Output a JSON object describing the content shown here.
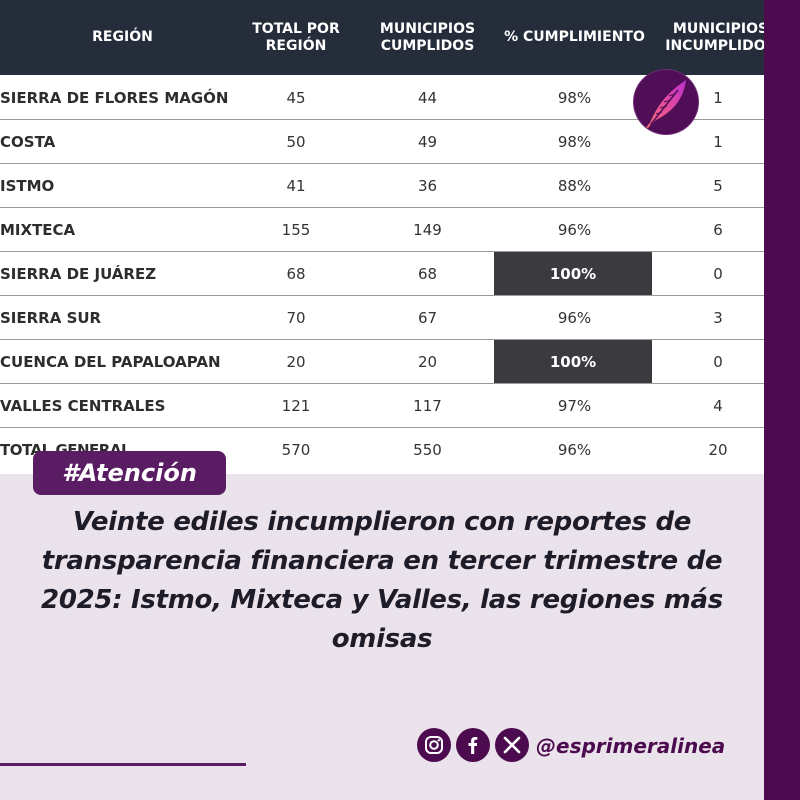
{
  "table": {
    "headers": {
      "region": "REGIÓN",
      "total": "TOTAL POR\nREGIÓN",
      "cumplidos": "MUNICIPIOS\nCUMPLIDOS",
      "pct": "% CUMPLIMIENTO",
      "incumplidos": "MUNICIPIOS\nINCUMPLIDOS"
    },
    "rows": [
      {
        "region": "SIERRA DE FLORES MAGÓN",
        "total": "45",
        "cumplidos": "44",
        "pct": "98%",
        "incumplidos": "1"
      },
      {
        "region": "COSTA",
        "total": "50",
        "cumplidos": "49",
        "pct": "98%",
        "incumplidos": "1"
      },
      {
        "region": "ISTMO",
        "total": "41",
        "cumplidos": "36",
        "pct": "88%",
        "incumplidos": "5"
      },
      {
        "region": "MIXTECA",
        "total": "155",
        "cumplidos": "149",
        "pct": "96%",
        "incumplidos": "6"
      },
      {
        "region": "SIERRA DE JUÁREZ",
        "total": "68",
        "cumplidos": "68",
        "pct": "100%",
        "incumplidos": "0"
      },
      {
        "region": "SIERRA SUR",
        "total": "70",
        "cumplidos": "67",
        "pct": "96%",
        "incumplidos": "3"
      },
      {
        "region": "CUENCA DEL PAPALOAPAN",
        "total": "20",
        "cumplidos": "20",
        "pct": "100%",
        "incumplidos": "0"
      },
      {
        "region": "VALLES CENTRALES",
        "total": "121",
        "cumplidos": "117",
        "pct": "97%",
        "incumplidos": "4"
      }
    ],
    "total_row": {
      "region": "TOTAL GENERAL",
      "total": "570",
      "cumplidos": "550",
      "pct": "96%",
      "incumplidos": "20"
    }
  },
  "badge": "#Atención",
  "headline": "Veinte ediles incumplieron con reportes de transparencia financiera en tercer trimestre de 2025: Istmo, Mixteca y Valles, las regiones más omisas",
  "footer": {
    "handle": "@esprimeralinea",
    "icons": [
      "instagram-icon",
      "facebook-icon",
      "x-icon"
    ]
  },
  "colors": {
    "header_bg": "#262d3a",
    "highlight_bg": "#3b3b3f",
    "brand_purple": "#4c0b4e",
    "total_red": "#8a1538",
    "background": "#ebe3ec"
  }
}
